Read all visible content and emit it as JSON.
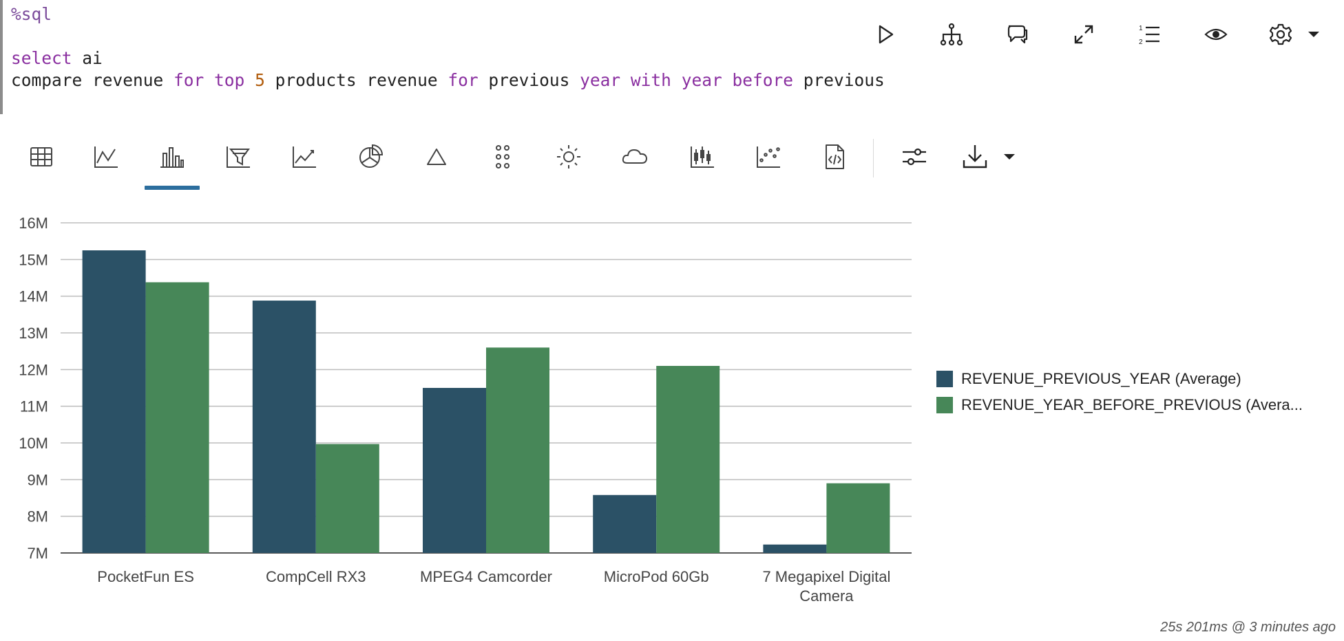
{
  "editor": {
    "magic": "%sql",
    "line2_kw": "select",
    "line2_text": " ai",
    "line3": [
      {
        "t": "compare revenue ",
        "c": ""
      },
      {
        "t": "for",
        "c": "kw"
      },
      {
        "t": " ",
        "c": ""
      },
      {
        "t": "top",
        "c": "kw"
      },
      {
        "t": " ",
        "c": ""
      },
      {
        "t": "5",
        "c": "num"
      },
      {
        "t": " products revenue ",
        "c": ""
      },
      {
        "t": "for",
        "c": "kw"
      },
      {
        "t": " previous ",
        "c": ""
      },
      {
        "t": "year",
        "c": "kw"
      },
      {
        "t": " ",
        "c": ""
      },
      {
        "t": "with",
        "c": "kw"
      },
      {
        "t": " ",
        "c": ""
      },
      {
        "t": "year",
        "c": "kw"
      },
      {
        "t": " ",
        "c": ""
      },
      {
        "t": "before",
        "c": "kw"
      },
      {
        "t": " previous",
        "c": ""
      }
    ]
  },
  "paragraph_toolbar": {
    "icons": [
      "run-icon",
      "hierarchy-icon",
      "comment-icon",
      "expand-icon",
      "list-numbered-icon",
      "eye-icon",
      "gear-icon",
      "caret-down-icon"
    ]
  },
  "visualization_toolbar": {
    "icons": [
      "table-icon",
      "line-chart-icon",
      "bar-chart-icon",
      "funnel-chart-icon",
      "area-chart-icon",
      "pie-chart-icon",
      "pyramid-icon",
      "dot-grid-icon",
      "sunburst-icon",
      "cloud-icon",
      "boxplot-icon",
      "scatter-icon",
      "code-file-icon",
      "settings-sliders-icon",
      "download-icon",
      "caret-down-icon"
    ],
    "active": "bar-chart-icon"
  },
  "chart_data": {
    "type": "bar",
    "categories": [
      "PocketFun ES",
      "CompCell RX3",
      "MPEG4 Camcorder",
      "MicroPod 60Gb",
      "7 Megapixel Digital Camera"
    ],
    "category_lines": [
      [
        "PocketFun ES"
      ],
      [
        "CompCell RX3"
      ],
      [
        "MPEG4 Camcorder"
      ],
      [
        "MicroPod 60Gb"
      ],
      [
        "7 Megapixel Digital",
        "Camera"
      ]
    ],
    "series": [
      {
        "name": "REVENUE_PREVIOUS_YEAR (Average)",
        "color": "#2b5166",
        "values": [
          15.25,
          13.88,
          11.5,
          8.58,
          7.23
        ]
      },
      {
        "name": "REVENUE_YEAR_BEFORE_PREVIOUS (Avera...",
        "color": "#478758",
        "values": [
          14.38,
          9.97,
          12.6,
          12.1,
          8.9
        ]
      }
    ],
    "ylim": [
      7,
      16
    ],
    "yticks": [
      "7M",
      "8M",
      "9M",
      "10M",
      "11M",
      "12M",
      "13M",
      "14M",
      "15M",
      "16M"
    ],
    "grid": true,
    "legend_position": "right"
  },
  "footer": {
    "timing": "25s 201ms @ 3 minutes ago"
  }
}
